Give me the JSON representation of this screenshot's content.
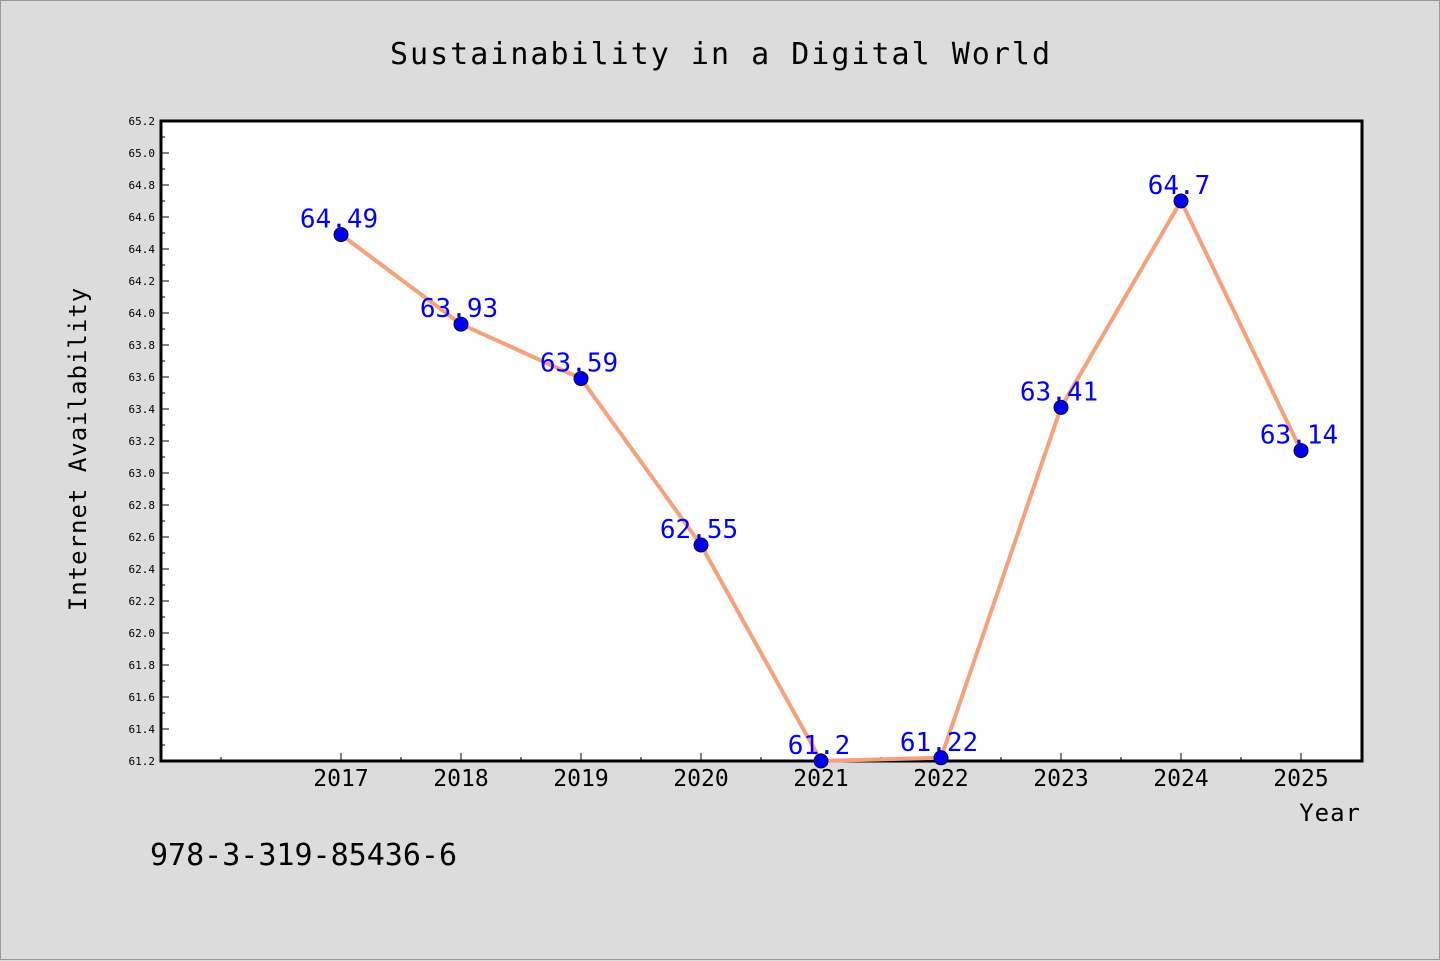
{
  "chart_data": {
    "type": "line",
    "title": "Sustainability in a Digital World",
    "xlabel": "Year",
    "ylabel": "Internet Availability",
    "x": [
      "2017",
      "2018",
      "2019",
      "2020",
      "2021",
      "2022",
      "2023",
      "2024",
      "2025"
    ],
    "series": [
      {
        "values": [
          64.49,
          63.93,
          63.59,
          62.55,
          61.2,
          61.22,
          63.41,
          64.7,
          63.14
        ],
        "labels": [
          "64.49",
          "63.93",
          "63.59",
          "62.55",
          "61.2",
          "61.22",
          "63.41",
          "64.7",
          "63.14"
        ],
        "line_color": "#f7a07c",
        "marker_color": "#0000ee",
        "label_color": "#0000ff"
      }
    ],
    "ylim": [
      61.2,
      65.2
    ],
    "yticks": [
      "61.2",
      "61.4",
      "61.6",
      "61.8",
      "62.0",
      "62.2",
      "62.4",
      "62.6",
      "62.8",
      "63.0",
      "63.2",
      "63.4",
      "63.6",
      "63.8",
      "64.0",
      "64.2",
      "64.4",
      "64.6",
      "64.8",
      "65.0",
      "65.2"
    ],
    "grid": false,
    "legend": "none"
  },
  "footer_text": "978-3-319-85436-6"
}
